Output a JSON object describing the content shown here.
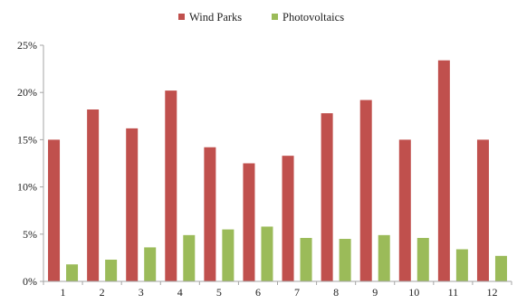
{
  "chart_data": {
    "type": "bar",
    "categories": [
      "1",
      "2",
      "3",
      "4",
      "5",
      "6",
      "7",
      "8",
      "9",
      "10",
      "11",
      "12"
    ],
    "series": [
      {
        "name": "Wind Parks",
        "color": "#c0504d",
        "values": [
          15.0,
          18.2,
          16.2,
          20.2,
          14.2,
          12.5,
          13.3,
          17.8,
          19.2,
          15.0,
          23.4,
          15.0
        ]
      },
      {
        "name": "Photovoltaics",
        "color": "#9bbb59",
        "values": [
          1.8,
          2.3,
          3.6,
          4.9,
          5.5,
          5.8,
          4.6,
          4.5,
          4.9,
          4.6,
          3.4,
          2.7
        ]
      }
    ],
    "yticks": [
      "0%",
      "5%",
      "10%",
      "15%",
      "20%",
      "25%"
    ],
    "ylim": [
      0,
      25
    ],
    "grid": false,
    "legend_position": "top-center",
    "axis_color": "#a6a6a6"
  }
}
